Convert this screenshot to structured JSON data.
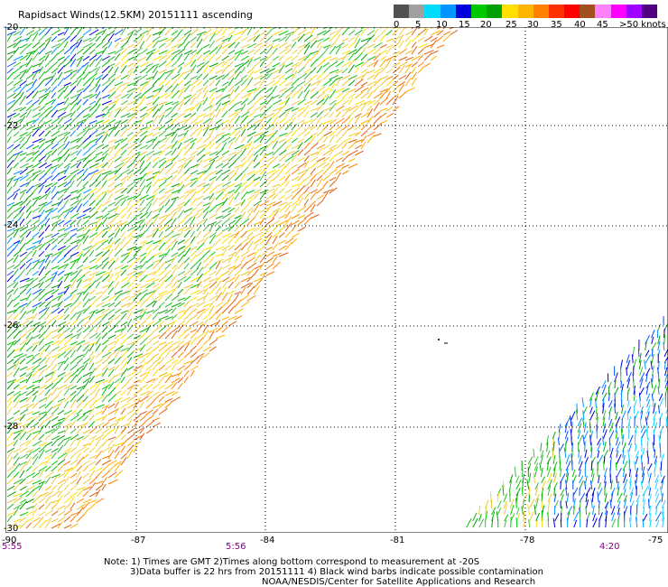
{
  "title": "Rapidsact Winds(12.5KM) 20151111 ascending",
  "legend": {
    "colors": [
      "#505050",
      "#a0a0a0",
      "#00dcff",
      "#0096ff",
      "#0000dc",
      "#00c800",
      "#00a000",
      "#ffe000",
      "#ffb400",
      "#ff8000",
      "#ff3000",
      "#ff0000",
      "#a05020",
      "#ff80ff",
      "#ff00ff",
      "#a000ff",
      "#500080"
    ],
    "labels": [
      "0",
      "5",
      "10",
      "15",
      "20",
      "25",
      "30",
      "35",
      "40",
      "45",
      ">50 knots"
    ]
  },
  "axes": {
    "lon_labels": [
      "-90",
      "-87",
      "-84",
      "-81",
      "-78",
      "-75"
    ],
    "lat_labels": [
      "-20",
      "-22",
      "-24",
      "-26",
      "-28",
      "-30"
    ]
  },
  "times": {
    "left": "5:55",
    "mid": "5:56",
    "right": "4:20"
  },
  "notes": {
    "line1": "Note: 1) Times are GMT 2)Times along bottom correspond to measurement at -20S",
    "line2": "3)Data buffer is 22 hrs from 20151111 4) Black wind barbs indicate possible contamination",
    "line3": "NOAA/NESDIS/Center for Satellite Applications and Research"
  }
}
